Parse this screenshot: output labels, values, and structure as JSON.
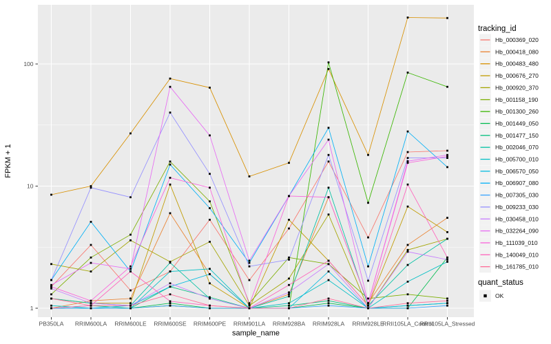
{
  "figure": {
    "background": "#FFFFFF",
    "panel_bg": "#EBEBEB",
    "grid_color": "#FFFFFF",
    "tick_color": "#333333",
    "tick_label_color": "#4D4D4D",
    "axis_title_color": "#000000",
    "legend_key_bg": "#F2F2F2"
  },
  "chart_data": {
    "type": "line",
    "title": "",
    "xlabel": "sample_name",
    "ylabel": "FPKM + 1",
    "y_scale": "log10",
    "y_ticks": [
      "1",
      "10",
      "100"
    ],
    "ylim": [
      1,
      320
    ],
    "grid": true,
    "legend_position": "right",
    "legend_title": "tracking_id",
    "categories": [
      "PB350LA",
      "RRIM600LA",
      "RRIM600LE",
      "RRIM600SE",
      "RRIM600PE",
      "RRIM901LA",
      "RRIM928BA",
      "RRIM928LA",
      "RRIM928LE",
      "RRII105LA_Control",
      "RRII105LA_Stressed"
    ],
    "series": [
      {
        "name": "Hb_000369_020",
        "color": "#F8766D",
        "values": [
          1.5,
          3.3,
          1.4,
          2.0,
          5.3,
          1.7,
          4.5,
          15.9,
          3.8,
          19,
          19.5
        ]
      },
      {
        "name": "Hb_000418_080",
        "color": "#EA8331",
        "values": [
          1.0,
          1.15,
          1.2,
          6.0,
          1.9,
          1.0,
          1.3,
          8.1,
          1.1,
          3.3,
          5.5
        ]
      },
      {
        "name": "Hb_000483_480",
        "color": "#D89000",
        "values": [
          8.5,
          10,
          27,
          76,
          64,
          12,
          15.5,
          91,
          18,
          240,
          238
        ]
      },
      {
        "name": "Hb_000676_270",
        "color": "#C09B00",
        "values": [
          1.2,
          1.1,
          1.1,
          10.3,
          1.6,
          1.0,
          5.3,
          2.45,
          1.05,
          6.8,
          4.2
        ]
      },
      {
        "name": "Hb_000920_370",
        "color": "#A3A500",
        "values": [
          2.3,
          2.0,
          3.6,
          2.4,
          3.5,
          1.05,
          1.75,
          5.85,
          1.0,
          3.0,
          3.7
        ]
      },
      {
        "name": "Hb_001158_190",
        "color": "#7CAE00",
        "values": [
          1.3,
          2.6,
          4.0,
          15.9,
          7.5,
          1.1,
          2.6,
          2.3,
          1.2,
          1.3,
          1.2
        ]
      },
      {
        "name": "Hb_001300_260",
        "color": "#39B600",
        "values": [
          1.0,
          1.0,
          1.0,
          1.05,
          1.0,
          1.0,
          1.0,
          103,
          7.3,
          85,
          65
        ]
      },
      {
        "name": "Hb_001449_050",
        "color": "#00BB4E",
        "values": [
          1.0,
          1.0,
          1.0,
          1.1,
          1.0,
          1.0,
          1.0,
          1.1,
          1.0,
          1.0,
          2.6
        ]
      },
      {
        "name": "Hb_001477_150",
        "color": "#00BF7D",
        "values": [
          1.0,
          1.05,
          1.0,
          1.5,
          1.23,
          1.0,
          1.05,
          1.15,
          1.0,
          1.05,
          1.1
        ]
      },
      {
        "name": "Hb_002046_070",
        "color": "#00C1A3",
        "values": [
          1.2,
          1.1,
          1.05,
          2.36,
          1.2,
          1.0,
          1.25,
          9.7,
          1.05,
          2.26,
          3.7
        ]
      },
      {
        "name": "Hb_005700_010",
        "color": "#00BFC4",
        "values": [
          1.05,
          1.0,
          1.0,
          2.0,
          2.1,
          1.0,
          1.1,
          1.7,
          1.0,
          1.65,
          2.4
        ]
      },
      {
        "name": "Hb_006570_050",
        "color": "#00BAE0",
        "values": [
          1.0,
          1.0,
          1.05,
          1.5,
          1.9,
          1.0,
          1.0,
          2.0,
          1.0,
          1.05,
          1.1
        ]
      },
      {
        "name": "Hb_006907_080",
        "color": "#00B0F6",
        "values": [
          1.7,
          5.1,
          2.0,
          15,
          6.6,
          2.35,
          8.3,
          30,
          2.2,
          28,
          14.3
        ]
      },
      {
        "name": "Hb_007305_030",
        "color": "#35A2FF",
        "values": [
          1.0,
          1.0,
          1.0,
          1.05,
          1.0,
          1.0,
          1.0,
          1.05,
          1.0,
          1.0,
          1.05
        ]
      },
      {
        "name": "Hb_009233_030",
        "color": "#9590FF",
        "values": [
          1.7,
          9.7,
          8.1,
          40,
          12.6,
          2.2,
          2.5,
          18,
          1.68,
          17,
          17
        ]
      },
      {
        "name": "Hb_030458_010",
        "color": "#C77CFF",
        "values": [
          1.45,
          1.1,
          1.05,
          1.6,
          1.2,
          1.0,
          1.35,
          2.3,
          1.0,
          2.9,
          2.5
        ]
      },
      {
        "name": "Hb_032264_090",
        "color": "#E76BF3",
        "values": [
          1.55,
          2.35,
          2.1,
          65,
          26,
          2.45,
          8.3,
          24,
          1.1,
          16,
          18
        ]
      },
      {
        "name": "Hb_111039_010",
        "color": "#FA62DB",
        "values": [
          1.5,
          1.15,
          2.2,
          11.7,
          9.7,
          1.07,
          8.3,
          8.1,
          1.1,
          15.5,
          17.5
        ]
      },
      {
        "name": "Hb_140049_010",
        "color": "#FF62BC",
        "values": [
          1.0,
          1.05,
          2.0,
          1.14,
          1.05,
          1.0,
          1.55,
          2.45,
          1.05,
          10.3,
          2.6
        ]
      },
      {
        "name": "Hb_161785_010",
        "color": "#FF6A98",
        "values": [
          1.2,
          1.05,
          1.05,
          1.3,
          1.05,
          1.0,
          1.0,
          1.2,
          1.0,
          1.1,
          1.15
        ]
      }
    ],
    "point_marker": {
      "shape": "filled-square",
      "color": "#000000"
    },
    "legend2": {
      "title": "quant_status",
      "items": [
        {
          "label": "OK"
        }
      ]
    }
  }
}
